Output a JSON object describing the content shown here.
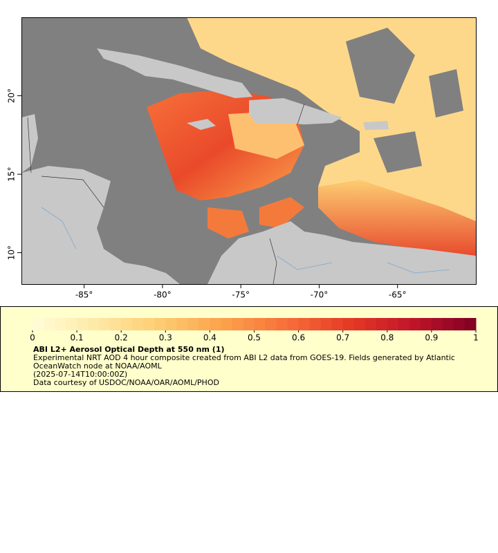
{
  "chart_data": {
    "type": "map",
    "xlim": [
      -89,
      -60
    ],
    "ylim": [
      8,
      25
    ],
    "xticks": [
      {
        "value": -85,
        "label": "-85°"
      },
      {
        "value": -80,
        "label": "-80°"
      },
      {
        "value": -75,
        "label": "-75°"
      },
      {
        "value": -70,
        "label": "-70°"
      },
      {
        "value": -65,
        "label": "-65°"
      }
    ],
    "yticks": [
      {
        "value": 10,
        "label": "10°"
      },
      {
        "value": 15,
        "label": "15°"
      },
      {
        "value": 20,
        "label": "20°"
      }
    ],
    "colorbar": {
      "title": "ABI L2+ Aerosol Optical Depth at 550 nm (1)",
      "range": [
        0,
        1
      ],
      "ticks": [
        0,
        0.1,
        0.2,
        0.3,
        0.4,
        0.5,
        0.6,
        0.7,
        0.8,
        0.9,
        1
      ],
      "colors": [
        "#fffdd8",
        "#fee9a6",
        "#fdcd72",
        "#fca24c",
        "#f7703a",
        "#e53a25",
        "#c0152a",
        "#7f0022"
      ]
    },
    "notes": [
      "Experimental NRT AOD 4 hour composite created from ABI L2 data from GOES-19. Fields generated by Atlantic OceanWatch node at NOAA/AOML",
      "(2025-07-14T10:00:00Z)",
      "Data courtesy of USDOC/NOAA/OAR/AOML/PHOD"
    ]
  }
}
